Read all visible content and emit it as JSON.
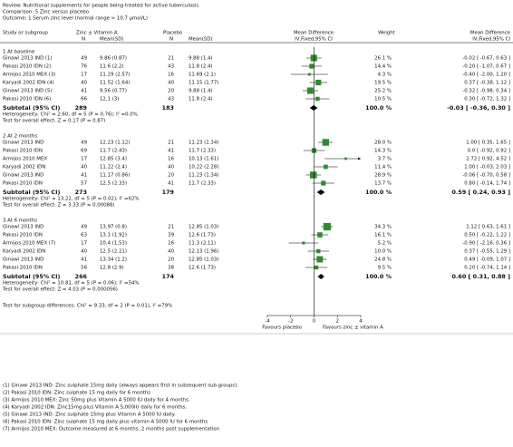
{
  "header": {
    "review": "Review:   Nutritional supplements for people being treated for active tuberculosis",
    "comparison": "Comparison:   5 Zinc versus placebo",
    "outcome": "Outcome:   1 Serum zinc level (normal range > 10.7 µmol/L)"
  },
  "columns": {
    "study": "Study or subgroup",
    "group1": "Zinc ± Vitamin A",
    "group2": "Placebo",
    "plot": "Mean Difference",
    "weight": "Weight",
    "effect": "Mean Difference",
    "n1": "N",
    "mean_sd1": "Mean(SD)",
    "n2": "N",
    "mean_sd2": "Mean(SD)",
    "plot_sub": "IV,Fixed,95% CI",
    "effect_sub": "IV,Fixed,95% CI"
  },
  "chart_data": {
    "type": "forest",
    "xlim": [
      -4,
      4
    ],
    "xticks": [
      -4,
      -2,
      0,
      2,
      4
    ],
    "color": "#2e8b2e",
    "favours_left": "Favours placebo",
    "favours_right": "Favours zinc ± vitamin A",
    "groups": [
      {
        "title": "1 At baseline",
        "studies": [
          {
            "study": "Ginawi 2013 IND (1)",
            "n1": 49,
            "mean_sd1": "9.86 (0.87)",
            "n2": 21,
            "mean_sd2": "9.88 (1.4)",
            "weight": 26.1,
            "weight_label": "26.1 %",
            "md": -0.02,
            "lo": -0.67,
            "hi": 0.63,
            "ci_label": "-0.02 [ -0.67, 0.63 ]"
          },
          {
            "study": "Pakasi 2010 IDN (2)",
            "n1": 76,
            "mean_sd1": "11.6 (2.2)",
            "n2": 43,
            "mean_sd2": "11.8 (2.4)",
            "weight": 14.4,
            "weight_label": "14.4 %",
            "md": -0.2,
            "lo": -1.07,
            "hi": 0.67,
            "ci_label": "-0.20 [ -1.07, 0.67 ]"
          },
          {
            "study": "Armijos 2010 MEX (3)",
            "n1": 17,
            "mean_sd1": "11.29 (2.57)",
            "n2": 16,
            "mean_sd2": "11.69 (2.1)",
            "weight": 4.3,
            "weight_label": "4.3 %",
            "md": -0.4,
            "lo": -2.0,
            "hi": 1.2,
            "ci_label": "-0.40 [ -2.00, 1.20 ]"
          },
          {
            "study": "Karyadi 2002 IDN (4)",
            "n1": 40,
            "mean_sd1": "11.52 (1.64)",
            "n2": 40,
            "mean_sd2": "11.15 (1.77)",
            "weight": 19.5,
            "weight_label": "19.5 %",
            "md": 0.37,
            "lo": -0.38,
            "hi": 1.12,
            "ci_label": "0.37 [ -0.38, 1.12 ]"
          },
          {
            "study": "Ginawi 2013 IND (5)",
            "n1": 41,
            "mean_sd1": "9.56 (0.77)",
            "n2": 20,
            "mean_sd2": "9.88 (1.4)",
            "weight": 25.2,
            "weight_label": "25.2 %",
            "md": -0.32,
            "lo": -0.98,
            "hi": 0.34,
            "ci_label": "-0.32 [ -0.98, 0.34 ]"
          },
          {
            "study": "Pakasi 2010 IDN (6)",
            "n1": 66,
            "mean_sd1": "12.1 (3)",
            "n2": 43,
            "mean_sd2": "11.8 (2.4)",
            "weight": 10.5,
            "weight_label": "10.5 %",
            "md": 0.3,
            "lo": -0.72,
            "hi": 1.32,
            "ci_label": "0.30 [ -0.72, 1.32 ]"
          }
        ],
        "subtotal": {
          "label": "Subtotal (95% CI)",
          "n1": 289,
          "n2": 183,
          "weight_label": "100.0 %",
          "md": -0.03,
          "lo": -0.36,
          "hi": 0.3,
          "ci_label": "-0.03 [ -0.36, 0.30 ]"
        },
        "heterogeneity": "Heterogeneity: Chi² = 2.60, df = 5 (P = 0.76); I² =0.0%",
        "overall": "Test for overall effect: Z = 0.17 (P = 0.87)"
      },
      {
        "title": "2 At 2 months",
        "studies": [
          {
            "study": "Ginawi 2013 IND",
            "n1": 49,
            "mean_sd1": "12.23 (1.12)",
            "n2": 21,
            "mean_sd2": "11.23 (1.34)",
            "weight": 28.0,
            "weight_label": "28.0 %",
            "md": 1.0,
            "lo": 0.35,
            "hi": 1.65,
            "ci_label": "1.00 [ 0.35, 1.65 ]"
          },
          {
            "study": "Pakasi 2010 IDN",
            "n1": 69,
            "mean_sd1": "11.7 (2.43)",
            "n2": 41,
            "mean_sd2": "11.7 (2.33)",
            "weight": 14.3,
            "weight_label": "14.3 %",
            "md": 0.0,
            "lo": -0.92,
            "hi": 0.92,
            "ci_label": "0.0 [ -0.92, 0.92 ]"
          },
          {
            "study": "Armijos 2010 MEX",
            "n1": 17,
            "mean_sd1": "12.85 (3.4)",
            "n2": 16,
            "mean_sd2": "10.13 (1.61)",
            "weight": 3.7,
            "weight_label": "3.7 %",
            "md": 2.72,
            "lo": 0.92,
            "hi": 4.52,
            "ci_label": "2.72 [ 0.92, 4.52 ]"
          },
          {
            "study": "Karyadi 2002 IDN",
            "n1": 40,
            "mean_sd1": "11.22 (2.4)",
            "n2": 40,
            "mean_sd2": "10.22 (2.28)",
            "weight": 11.4,
            "weight_label": "11.4 %",
            "md": 1.0,
            "lo": -0.03,
            "hi": 2.03,
            "ci_label": "1.00 [ -0.03, 2.03 ]"
          },
          {
            "study": "Ginawi 2013 IND",
            "n1": 41,
            "mean_sd1": "11.17 (0.86)",
            "n2": 20,
            "mean_sd2": "11.23 (1.34)",
            "weight": 28.9,
            "weight_label": "28.9 %",
            "md": -0.06,
            "lo": -0.7,
            "hi": 0.58,
            "ci_label": "-0.06 [ -0.70, 0.58 ]"
          },
          {
            "study": "Pakasi 2010 IDN",
            "n1": 57,
            "mean_sd1": "12.5 (2.33)",
            "n2": 41,
            "mean_sd2": "11.7 (2.33)",
            "weight": 13.7,
            "weight_label": "13.7 %",
            "md": 0.8,
            "lo": -0.14,
            "hi": 1.74,
            "ci_label": "0.80 [ -0.14, 1.74 ]"
          }
        ],
        "subtotal": {
          "label": "Subtotal (95% CI)",
          "n1": 273,
          "n2": 179,
          "weight_label": "100.0 %",
          "md": 0.59,
          "lo": 0.24,
          "hi": 0.93,
          "ci_label": "0.59 [ 0.24, 0.93 ]"
        },
        "heterogeneity": "Heterogeneity: Chi² = 13.22, df = 5 (P = 0.02); I² =62%",
        "overall": "Test for overall effect: Z = 3.33 (P = 0.00088)"
      },
      {
        "title": "3 At 6 months",
        "studies": [
          {
            "study": "Ginawi 2013 IND",
            "n1": 49,
            "mean_sd1": "13.97 (0.8)",
            "n2": 21,
            "mean_sd2": "12.85 (1.03)",
            "weight": 34.3,
            "weight_label": "34.3 %",
            "md": 1.12,
            "lo": 0.63,
            "hi": 1.61,
            "ci_label": "1.12 [ 0.63, 1.61 ]"
          },
          {
            "study": "Pakasi 2010 IDN",
            "n1": 63,
            "mean_sd1": "13.1 (1.92)",
            "n2": 39,
            "mean_sd2": "12.6 (1.73)",
            "weight": 16.1,
            "weight_label": "16.1 %",
            "md": 0.5,
            "lo": -0.22,
            "hi": 1.22,
            "ci_label": "0.50 [ -0.22, 1.22 ]"
          },
          {
            "study": "Armijos 2010 MEX (7)",
            "n1": 17,
            "mean_sd1": "10.4 (1.53)",
            "n2": 16,
            "mean_sd2": "11.3 (2.11)",
            "weight": 5.2,
            "weight_label": "5.2 %",
            "md": -0.9,
            "lo": -2.16,
            "hi": 0.36,
            "ci_label": "-0.90 [ -2.16, 0.36 ]"
          },
          {
            "study": "Karyadi 2002 IDN",
            "n1": 40,
            "mean_sd1": "12.5 (2.21)",
            "n2": 40,
            "mean_sd2": "12.13 (1.96)",
            "weight": 10.0,
            "weight_label": "10.0 %",
            "md": 0.37,
            "lo": -0.55,
            "hi": 1.29,
            "ci_label": "0.37 [ -0.55, 1.29 ]"
          },
          {
            "study": "Ginawi 2013 IND",
            "n1": 41,
            "mean_sd1": "13.34 (1.2)",
            "n2": 20,
            "mean_sd2": "12.85 (1.03)",
            "weight": 24.8,
            "weight_label": "24.8 %",
            "md": 0.49,
            "lo": -0.09,
            "hi": 1.07,
            "ci_label": "0.49 [ -0.09, 1.07 ]"
          },
          {
            "study": "Pakasi 2010 IDN",
            "n1": 56,
            "mean_sd1": "12.8 (2.9)",
            "n2": 38,
            "mean_sd2": "12.6 (1.73)",
            "weight": 9.5,
            "weight_label": "9.5 %",
            "md": 0.2,
            "lo": -0.74,
            "hi": 1.14,
            "ci_label": "0.20 [ -0.74, 1.14 ]"
          }
        ],
        "subtotal": {
          "label": "Subtotal (95% CI)",
          "n1": 266,
          "n2": 174,
          "weight_label": "100.0 %",
          "md": 0.6,
          "lo": 0.31,
          "hi": 0.88,
          "ci_label": "0.60 [ 0.31, 0.88 ]"
        },
        "heterogeneity": "Heterogeneity: Chi² = 10.81, df = 5 (P = 0.06); I² =54%",
        "overall": "Test for overall effect: Z = 4.03 (P = 0.000056)"
      }
    ],
    "subgroup_test": "Test for subgroup differences: Chi² = 9.33, df = 2 (P = 0.01), I² =79%"
  },
  "footnotes": [
    "(1) Ginawi 2013 IND: Zinc sulphate 15mg daily (always appears first in subsequent sub-groups).",
    "(2) Pakasi 2010 IDN: Zinc sulphate 15 mg daily for 6 months",
    "(3) Armijos 2010 MEX: Zinc 50mg plus Vitamin A 5000 IU daily for 4 months.",
    "(4) Karyadi 2002 IDN: Zinc15mg plus Vitamin A 5,000IU daily for 6 months.",
    "(5) Ginawi 2013 IND: Zinc sulphate 15mg plus Vitamin A 5000 IU daily.",
    "(6) Pakasi 2010 IDN: Zinc sulphate 15 mg daily plus vitamin A 5000 IU for 6 months",
    "(7) Armijos 2010 MEX: Outcome measured at 6 months, 2 months post supplementation"
  ]
}
